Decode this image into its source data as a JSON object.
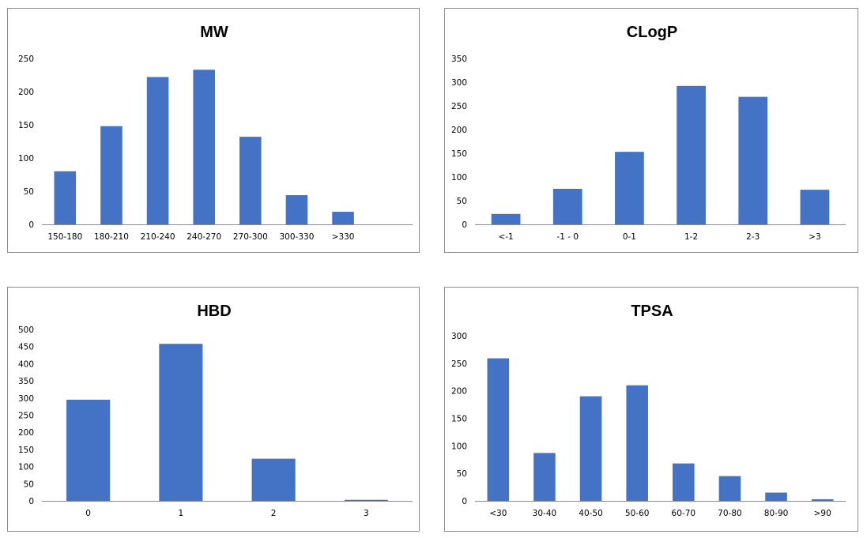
{
  "chart_data": [
    {
      "type": "bar",
      "title": "MW",
      "categories": [
        "150-180",
        "180-210",
        "210-240",
        "240-270",
        "270-300",
        "300-330",
        ">330"
      ],
      "values": [
        80,
        148,
        222,
        233,
        132,
        44,
        19
      ],
      "ylim": [
        0,
        250
      ],
      "yticks": [
        "0",
        "50",
        "100",
        "150",
        "200",
        "250"
      ],
      "grid": false,
      "legend": "none",
      "bar_color": "#4472C4"
    },
    {
      "type": "bar",
      "title": "CLogP",
      "categories": [
        "<-1",
        "-1 - 0",
        "0-1",
        "1-2",
        "2-3",
        ">3"
      ],
      "values": [
        22,
        75,
        153,
        292,
        269,
        73
      ],
      "ylim": [
        0,
        350
      ],
      "yticks": [
        "0",
        "50",
        "100",
        "150",
        "200",
        "250",
        "300",
        "350"
      ],
      "grid": false,
      "legend": "none",
      "bar_color": "#4472C4"
    },
    {
      "type": "bar",
      "title": "HBD",
      "categories": [
        "0",
        "1",
        "2",
        "3"
      ],
      "values": [
        295,
        458,
        123,
        3
      ],
      "ylim": [
        0,
        500
      ],
      "yticks": [
        "0",
        "50",
        "100",
        "150",
        "200",
        "250",
        "300",
        "350",
        "400",
        "450",
        "500"
      ],
      "grid": false,
      "legend": "none",
      "bar_color": "#4472C4"
    },
    {
      "type": "bar",
      "title": "TPSA",
      "categories": [
        "<30",
        "30-40",
        "40-50",
        "50-60",
        "60-70",
        "70-80",
        "80-90",
        ">90"
      ],
      "values": [
        259,
        87,
        190,
        210,
        68,
        45,
        15,
        3
      ],
      "ylim": [
        0,
        300
      ],
      "yticks": [
        "0",
        "50",
        "100",
        "150",
        "200",
        "250",
        "300"
      ],
      "grid": false,
      "legend": "none",
      "bar_color": "#4472C4"
    }
  ]
}
